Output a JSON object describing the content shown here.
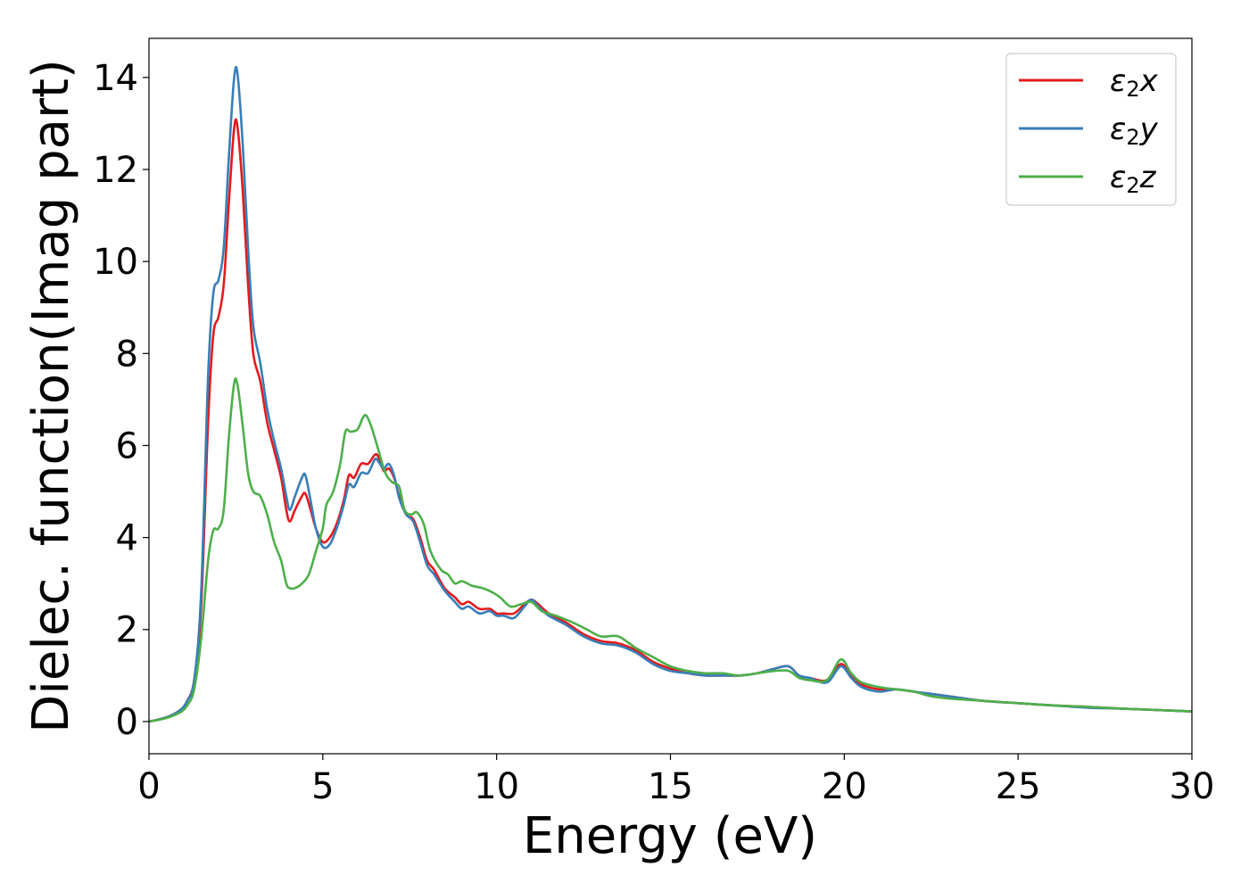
{
  "chart_data": {
    "type": "line",
    "xlabel": "Energy (eV)",
    "ylabel": "Dielec. function(Imag part)",
    "xlim": [
      0,
      30
    ],
    "ylim": [
      -0.7,
      14.85
    ],
    "x_ticks": [
      0,
      5,
      10,
      15,
      20,
      25,
      30
    ],
    "y_ticks": [
      0,
      2,
      4,
      6,
      8,
      10,
      12,
      14
    ],
    "grid": false,
    "legend_position": "top-right",
    "series": [
      {
        "name": "ε2x",
        "legend_symbol": "ε",
        "legend_subscript": "2",
        "legend_suffix": "x",
        "color": "#e41a1c",
        "points": [
          [
            0,
            0
          ],
          [
            0.3,
            0.05
          ],
          [
            0.6,
            0.12
          ],
          [
            0.9,
            0.25
          ],
          [
            1.1,
            0.45
          ],
          [
            1.3,
            0.9
          ],
          [
            1.5,
            2.5
          ],
          [
            1.7,
            6.5
          ],
          [
            1.85,
            8.4
          ],
          [
            2.0,
            8.8
          ],
          [
            2.15,
            9.5
          ],
          [
            2.3,
            11.3
          ],
          [
            2.45,
            12.9
          ],
          [
            2.55,
            12.9
          ],
          [
            2.7,
            11.5
          ],
          [
            2.85,
            9.5
          ],
          [
            3.0,
            8.0
          ],
          [
            3.2,
            7.4
          ],
          [
            3.4,
            6.5
          ],
          [
            3.6,
            5.9
          ],
          [
            3.8,
            5.3
          ],
          [
            3.95,
            4.6
          ],
          [
            4.05,
            4.35
          ],
          [
            4.2,
            4.6
          ],
          [
            4.4,
            4.9
          ],
          [
            4.5,
            4.95
          ],
          [
            4.65,
            4.6
          ],
          [
            4.8,
            4.2
          ],
          [
            5.0,
            3.9
          ],
          [
            5.2,
            4.0
          ],
          [
            5.4,
            4.3
          ],
          [
            5.6,
            4.8
          ],
          [
            5.75,
            5.35
          ],
          [
            5.9,
            5.3
          ],
          [
            6.1,
            5.6
          ],
          [
            6.3,
            5.6
          ],
          [
            6.5,
            5.8
          ],
          [
            6.6,
            5.75
          ],
          [
            6.75,
            5.45
          ],
          [
            6.9,
            5.5
          ],
          [
            7.05,
            5.3
          ],
          [
            7.2,
            4.9
          ],
          [
            7.4,
            4.5
          ],
          [
            7.6,
            4.4
          ],
          [
            7.8,
            4.0
          ],
          [
            8.0,
            3.5
          ],
          [
            8.2,
            3.3
          ],
          [
            8.5,
            2.9
          ],
          [
            8.8,
            2.7
          ],
          [
            9.0,
            2.55
          ],
          [
            9.2,
            2.6
          ],
          [
            9.5,
            2.45
          ],
          [
            9.8,
            2.45
          ],
          [
            10.0,
            2.35
          ],
          [
            10.2,
            2.35
          ],
          [
            10.5,
            2.35
          ],
          [
            10.8,
            2.55
          ],
          [
            11.0,
            2.65
          ],
          [
            11.2,
            2.55
          ],
          [
            11.5,
            2.35
          ],
          [
            12.0,
            2.15
          ],
          [
            12.5,
            1.9
          ],
          [
            13.0,
            1.75
          ],
          [
            13.5,
            1.7
          ],
          [
            14.0,
            1.55
          ],
          [
            14.5,
            1.3
          ],
          [
            15.0,
            1.15
          ],
          [
            15.5,
            1.05
          ],
          [
            16.0,
            1.0
          ],
          [
            16.5,
            1.0
          ],
          [
            17.0,
            1.0
          ],
          [
            17.5,
            1.05
          ],
          [
            18.0,
            1.15
          ],
          [
            18.4,
            1.2
          ],
          [
            18.7,
            1.0
          ],
          [
            19.0,
            0.95
          ],
          [
            19.5,
            0.9
          ],
          [
            19.9,
            1.25
          ],
          [
            20.2,
            1.0
          ],
          [
            20.5,
            0.8
          ],
          [
            21.0,
            0.7
          ],
          [
            21.5,
            0.7
          ],
          [
            22.0,
            0.65
          ],
          [
            22.5,
            0.6
          ],
          [
            23.0,
            0.55
          ],
          [
            24.0,
            0.45
          ],
          [
            25.0,
            0.4
          ],
          [
            26.0,
            0.35
          ],
          [
            27.0,
            0.32
          ],
          [
            28.0,
            0.28
          ],
          [
            29.0,
            0.25
          ],
          [
            30.0,
            0.22
          ]
        ]
      },
      {
        "name": "ε2y",
        "legend_symbol": "ε",
        "legend_subscript": "2",
        "legend_suffix": "y",
        "color": "#377eb8",
        "points": [
          [
            0,
            0
          ],
          [
            0.3,
            0.05
          ],
          [
            0.6,
            0.12
          ],
          [
            0.9,
            0.25
          ],
          [
            1.1,
            0.45
          ],
          [
            1.3,
            0.9
          ],
          [
            1.5,
            2.8
          ],
          [
            1.7,
            7.5
          ],
          [
            1.85,
            9.3
          ],
          [
            2.0,
            9.6
          ],
          [
            2.15,
            10.3
          ],
          [
            2.3,
            12.3
          ],
          [
            2.45,
            14.0
          ],
          [
            2.55,
            14.05
          ],
          [
            2.7,
            12.5
          ],
          [
            2.85,
            10.3
          ],
          [
            3.0,
            8.6
          ],
          [
            3.2,
            7.8
          ],
          [
            3.4,
            6.8
          ],
          [
            3.6,
            6.1
          ],
          [
            3.8,
            5.5
          ],
          [
            3.95,
            4.9
          ],
          [
            4.05,
            4.6
          ],
          [
            4.2,
            4.9
          ],
          [
            4.4,
            5.3
          ],
          [
            4.5,
            5.35
          ],
          [
            4.65,
            4.8
          ],
          [
            4.8,
            4.2
          ],
          [
            5.0,
            3.8
          ],
          [
            5.2,
            3.85
          ],
          [
            5.4,
            4.2
          ],
          [
            5.6,
            4.7
          ],
          [
            5.75,
            5.15
          ],
          [
            5.9,
            5.1
          ],
          [
            6.1,
            5.4
          ],
          [
            6.3,
            5.4
          ],
          [
            6.5,
            5.7
          ],
          [
            6.6,
            5.65
          ],
          [
            6.75,
            5.5
          ],
          [
            6.9,
            5.6
          ],
          [
            7.05,
            5.35
          ],
          [
            7.2,
            4.85
          ],
          [
            7.4,
            4.5
          ],
          [
            7.6,
            4.35
          ],
          [
            7.8,
            3.9
          ],
          [
            8.0,
            3.4
          ],
          [
            8.2,
            3.2
          ],
          [
            8.5,
            2.85
          ],
          [
            8.8,
            2.6
          ],
          [
            9.0,
            2.45
          ],
          [
            9.2,
            2.5
          ],
          [
            9.5,
            2.35
          ],
          [
            9.8,
            2.4
          ],
          [
            10.0,
            2.3
          ],
          [
            10.2,
            2.3
          ],
          [
            10.5,
            2.25
          ],
          [
            10.8,
            2.5
          ],
          [
            11.0,
            2.65
          ],
          [
            11.2,
            2.5
          ],
          [
            11.5,
            2.3
          ],
          [
            12.0,
            2.1
          ],
          [
            12.5,
            1.85
          ],
          [
            13.0,
            1.7
          ],
          [
            13.5,
            1.65
          ],
          [
            14.0,
            1.5
          ],
          [
            14.5,
            1.25
          ],
          [
            15.0,
            1.1
          ],
          [
            15.5,
            1.05
          ],
          [
            16.0,
            1.0
          ],
          [
            16.5,
            1.0
          ],
          [
            17.0,
            1.0
          ],
          [
            17.5,
            1.05
          ],
          [
            18.0,
            1.15
          ],
          [
            18.4,
            1.2
          ],
          [
            18.7,
            1.0
          ],
          [
            19.0,
            0.95
          ],
          [
            19.5,
            0.85
          ],
          [
            19.9,
            1.2
          ],
          [
            20.2,
            0.95
          ],
          [
            20.5,
            0.75
          ],
          [
            21.0,
            0.65
          ],
          [
            21.5,
            0.7
          ],
          [
            22.0,
            0.65
          ],
          [
            22.5,
            0.6
          ],
          [
            23.0,
            0.55
          ],
          [
            24.0,
            0.45
          ],
          [
            25.0,
            0.4
          ],
          [
            26.0,
            0.35
          ],
          [
            27.0,
            0.3
          ],
          [
            28.0,
            0.28
          ],
          [
            29.0,
            0.25
          ],
          [
            30.0,
            0.22
          ]
        ]
      },
      {
        "name": "ε2z",
        "legend_symbol": "ε",
        "legend_subscript": "2",
        "legend_suffix": "z",
        "color": "#4daf4a",
        "points": [
          [
            0,
            0
          ],
          [
            0.3,
            0.04
          ],
          [
            0.6,
            0.1
          ],
          [
            0.9,
            0.2
          ],
          [
            1.1,
            0.35
          ],
          [
            1.3,
            0.7
          ],
          [
            1.5,
            1.8
          ],
          [
            1.7,
            3.5
          ],
          [
            1.85,
            4.15
          ],
          [
            2.0,
            4.2
          ],
          [
            2.15,
            4.6
          ],
          [
            2.3,
            6.2
          ],
          [
            2.45,
            7.35
          ],
          [
            2.55,
            7.3
          ],
          [
            2.7,
            6.4
          ],
          [
            2.85,
            5.4
          ],
          [
            3.0,
            5.0
          ],
          [
            3.2,
            4.9
          ],
          [
            3.4,
            4.5
          ],
          [
            3.6,
            3.9
          ],
          [
            3.8,
            3.5
          ],
          [
            3.95,
            3.0
          ],
          [
            4.05,
            2.9
          ],
          [
            4.2,
            2.9
          ],
          [
            4.4,
            3.0
          ],
          [
            4.6,
            3.2
          ],
          [
            4.8,
            3.7
          ],
          [
            5.0,
            4.2
          ],
          [
            5.1,
            4.7
          ],
          [
            5.3,
            5.0
          ],
          [
            5.5,
            5.6
          ],
          [
            5.65,
            6.3
          ],
          [
            5.8,
            6.3
          ],
          [
            6.0,
            6.35
          ],
          [
            6.15,
            6.6
          ],
          [
            6.25,
            6.65
          ],
          [
            6.4,
            6.4
          ],
          [
            6.6,
            5.9
          ],
          [
            6.8,
            5.4
          ],
          [
            7.0,
            5.2
          ],
          [
            7.2,
            5.1
          ],
          [
            7.35,
            4.6
          ],
          [
            7.55,
            4.5
          ],
          [
            7.7,
            4.55
          ],
          [
            7.9,
            4.3
          ],
          [
            8.1,
            3.7
          ],
          [
            8.4,
            3.3
          ],
          [
            8.6,
            3.2
          ],
          [
            8.8,
            3.0
          ],
          [
            9.0,
            3.05
          ],
          [
            9.3,
            2.95
          ],
          [
            9.6,
            2.9
          ],
          [
            9.9,
            2.8
          ],
          [
            10.1,
            2.7
          ],
          [
            10.4,
            2.5
          ],
          [
            10.7,
            2.55
          ],
          [
            11.0,
            2.6
          ],
          [
            11.3,
            2.4
          ],
          [
            11.7,
            2.3
          ],
          [
            12.2,
            2.15
          ],
          [
            12.6,
            2.0
          ],
          [
            13.0,
            1.85
          ],
          [
            13.5,
            1.85
          ],
          [
            14.0,
            1.6
          ],
          [
            14.5,
            1.4
          ],
          [
            15.0,
            1.2
          ],
          [
            15.5,
            1.1
          ],
          [
            16.0,
            1.05
          ],
          [
            16.5,
            1.05
          ],
          [
            17.0,
            1.0
          ],
          [
            17.5,
            1.05
          ],
          [
            18.0,
            1.1
          ],
          [
            18.4,
            1.1
          ],
          [
            18.7,
            0.95
          ],
          [
            19.0,
            0.9
          ],
          [
            19.5,
            0.9
          ],
          [
            19.9,
            1.35
          ],
          [
            20.2,
            1.05
          ],
          [
            20.5,
            0.85
          ],
          [
            21.0,
            0.75
          ],
          [
            21.5,
            0.7
          ],
          [
            22.0,
            0.65
          ],
          [
            22.5,
            0.55
          ],
          [
            23.0,
            0.5
          ],
          [
            24.0,
            0.45
          ],
          [
            25.0,
            0.4
          ],
          [
            26.0,
            0.35
          ],
          [
            27.0,
            0.32
          ],
          [
            28.0,
            0.28
          ],
          [
            29.0,
            0.25
          ],
          [
            30.0,
            0.22
          ]
        ]
      }
    ]
  }
}
